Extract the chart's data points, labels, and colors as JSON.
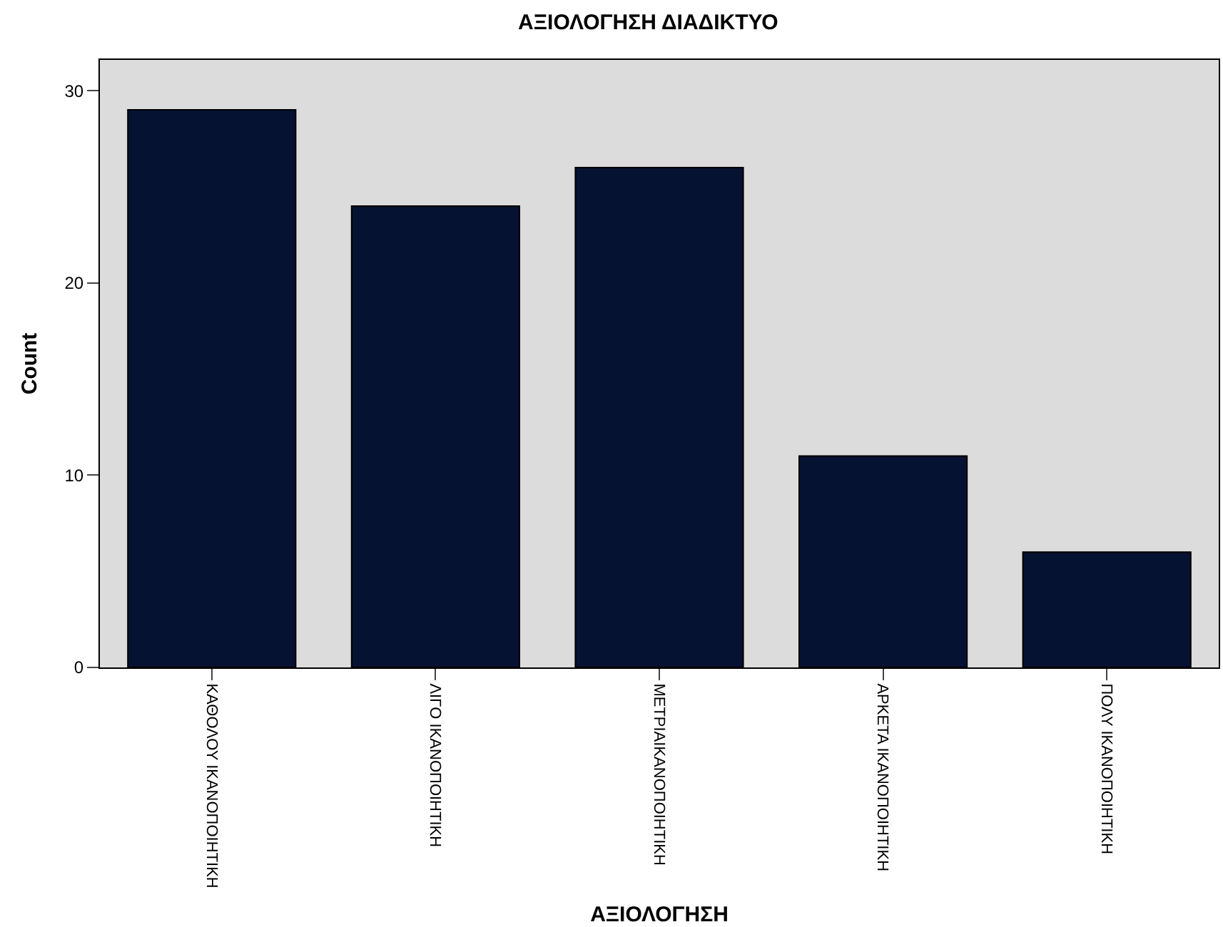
{
  "chart_data": {
    "type": "bar",
    "title": "ΑΞΙΟΛΟΓΗΣΗ ΔΙΑΔΙΚΤΥΟ",
    "xlabel": "ΑΞΙΟΛΟΓΗΣΗ",
    "ylabel": "Count",
    "categories": [
      "ΚΑΘΟΛΟΥ ΙΚΑΝΟΠΟΙΗΤΙΚΗ",
      "ΛΙΓΟ ΙΚΑΝΟΠΟΙΗΤΙΚΗ",
      "ΜΕΤΡΙΑΙΚΑΝΟΠΟΙΗΤΙΚΗ",
      "ΑΡΚΕΤΑ ΙΚΑΝΟΠΟΙΗΤΙΚΗ",
      "ΠΟΛΥ ΙΚΑΝΟΠΟΙΗΤΙΚΗ"
    ],
    "values": [
      29,
      24,
      26,
      11,
      6
    ],
    "color": "#061231",
    "ylim": [
      0,
      31.6
    ],
    "yticks": [
      0,
      10,
      20,
      30
    ],
    "grid": false
  }
}
